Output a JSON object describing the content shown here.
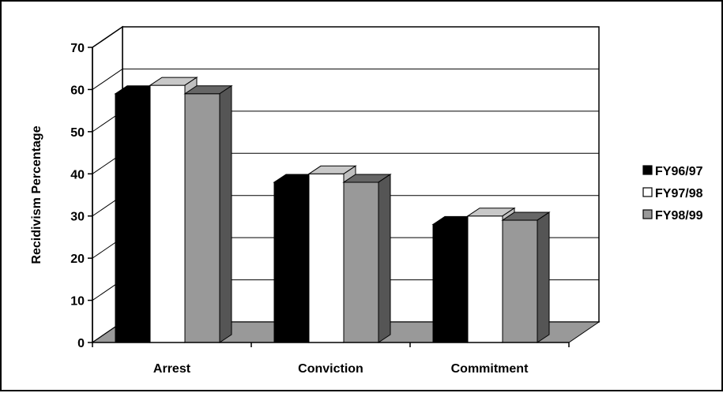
{
  "chart_data": {
    "type": "bar",
    "title": "",
    "xlabel": "",
    "ylabel": "Recidivism Percentage",
    "ylim": [
      0,
      70
    ],
    "yticks": [
      0,
      10,
      20,
      30,
      40,
      50,
      60,
      70
    ],
    "categories": [
      "Arrest",
      "Conviction",
      "Commitment"
    ],
    "series": [
      {
        "name": "FY96/97",
        "values": [
          59,
          38,
          28
        ],
        "color": "#000000",
        "side_color": "#000000",
        "top_color": "#000000"
      },
      {
        "name": "FY97/98",
        "values": [
          61,
          40,
          30
        ],
        "color": "#ffffff",
        "side_color": "#bfbfbf",
        "top_color": "#c8c8c8"
      },
      {
        "name": "FY98/99",
        "values": [
          59,
          38,
          29
        ],
        "color": "#999999",
        "side_color": "#555555",
        "top_color": "#666666"
      }
    ],
    "grid": true,
    "legend_position": "right",
    "floor_color": "#999999",
    "style": "3d-clustered-bar"
  }
}
